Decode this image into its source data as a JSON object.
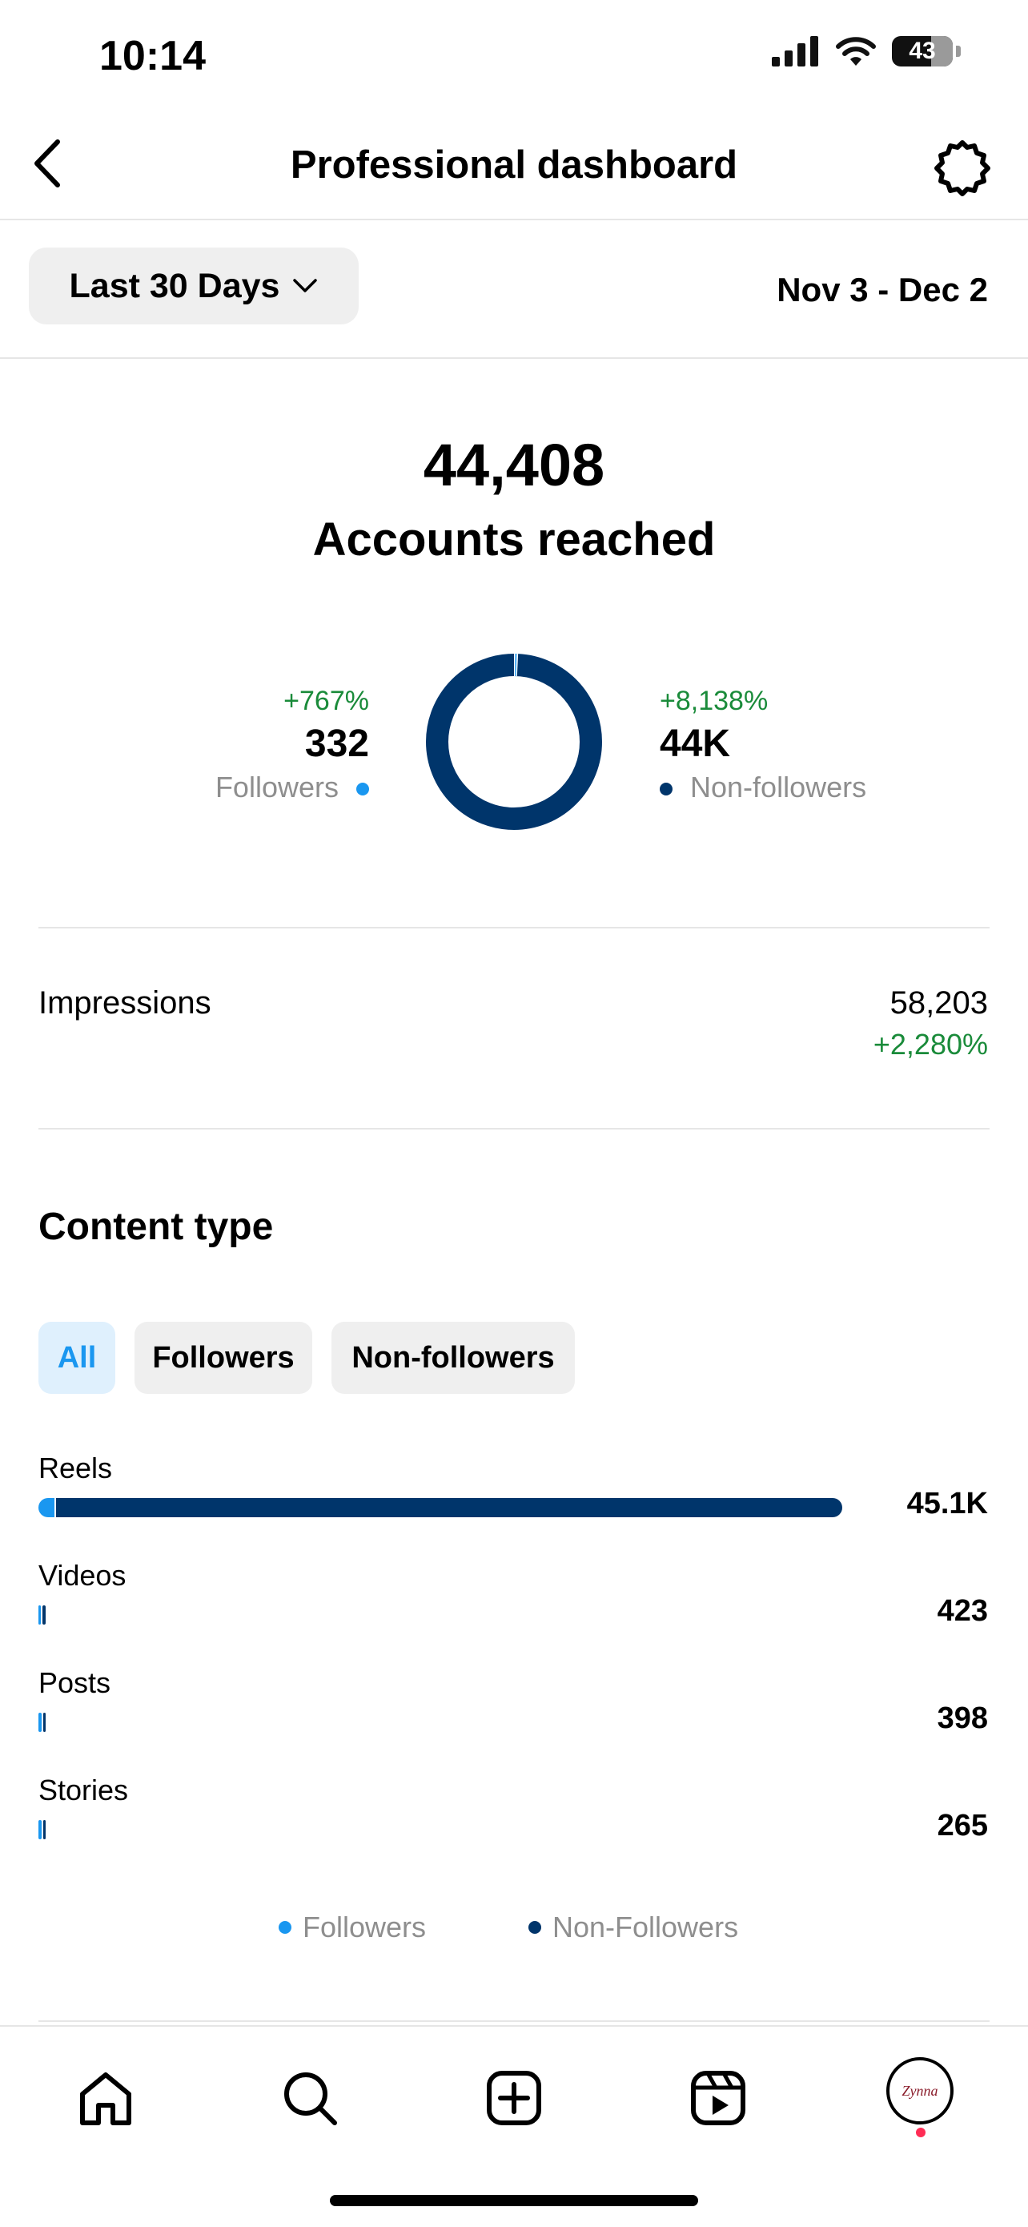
{
  "status_bar": {
    "time": "10:14",
    "battery": "43"
  },
  "header": {
    "title": "Professional dashboard"
  },
  "filter": {
    "range_label": "Last 30 Days",
    "date_range": "Nov 3 - Dec 2"
  },
  "reach": {
    "total": "44,408",
    "label": "Accounts reached",
    "followers": {
      "change": "+767%",
      "value": "332",
      "label": "Followers"
    },
    "non_followers": {
      "change": "+8,138%",
      "value": "44K",
      "label": "Non-followers"
    },
    "follower_share": 0.0075
  },
  "impressions": {
    "label": "Impressions",
    "value": "58,203",
    "change": "+2,280%"
  },
  "content_type": {
    "title": "Content type",
    "tabs": [
      "All",
      "Followers",
      "Non-followers"
    ],
    "active_tab": "All",
    "rows": [
      {
        "label": "Reels",
        "value": "45.1K",
        "amount": 45100,
        "follower_share": 0.02
      },
      {
        "label": "Videos",
        "value": "423",
        "amount": 423,
        "follower_share": 0.35
      },
      {
        "label": "Posts",
        "value": "398",
        "amount": 398,
        "follower_share": 0.4
      },
      {
        "label": "Stories",
        "value": "265",
        "amount": 265,
        "follower_share": 0.45
      }
    ],
    "legend": {
      "followers": "Followers",
      "non_followers": "Non-Followers"
    }
  },
  "colors": {
    "followers": "#1a97f0",
    "non_followers": "#00356b",
    "positive": "#1a8b3a"
  },
  "tabbar": {
    "items": [
      "home-icon",
      "search-icon",
      "create-icon",
      "reels-icon",
      "profile-avatar"
    ],
    "avatar_text": "Zynna"
  }
}
